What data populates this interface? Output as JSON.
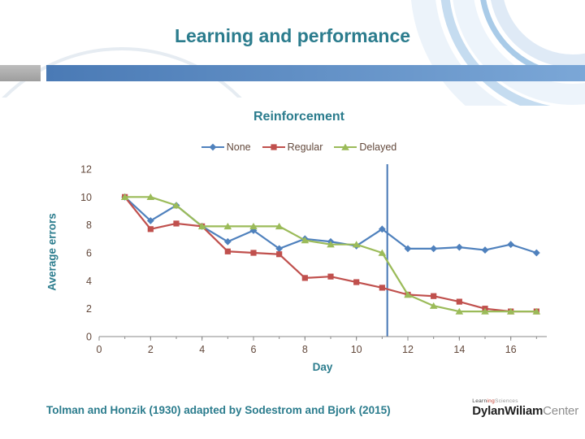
{
  "slide": {
    "title": "Learning and performance",
    "caption": "Tolman and Honzik (1930) adapted by Sodestrom and Bjork (2015)",
    "logo": {
      "learn": "Learn",
      "ing": "ing",
      "sciences": "Sciences",
      "dylan": "Dylan",
      "wiliam": "Wiliam",
      "center": "Center"
    }
  },
  "colors": {
    "accent_teal": "#2b7c8d",
    "chart_text_brown": "#63493c",
    "axis_line": "#8a8a8a",
    "header_bar_blue_start": "#4a7ab5",
    "header_bar_blue_end": "#7ba7d7",
    "header_bar_gray": "#ababab",
    "vline_blue": "#4576b5"
  },
  "chart_data": {
    "type": "line",
    "title": "Reinforcement",
    "xlabel": "Day",
    "ylabel": "Average errors",
    "xlim": [
      0,
      17.4
    ],
    "ylim": [
      0,
      12
    ],
    "xticks": [
      0,
      2,
      4,
      6,
      8,
      10,
      12,
      14,
      16
    ],
    "yticks": [
      0,
      2,
      4,
      6,
      8,
      10,
      12
    ],
    "grid": false,
    "legend_position": "top",
    "annotation_vline_x": 11.2,
    "x": [
      1,
      2,
      3,
      4,
      5,
      6,
      7,
      8,
      9,
      10,
      11,
      12,
      13,
      14,
      15,
      16,
      17
    ],
    "series": [
      {
        "name": "None",
        "color": "#4F81BD",
        "marker": "diamond",
        "values": [
          10,
          8.3,
          9.4,
          7.9,
          6.8,
          7.6,
          6.3,
          7.0,
          6.8,
          6.5,
          7.7,
          6.3,
          6.3,
          6.4,
          6.2,
          6.6,
          6.0
        ]
      },
      {
        "name": "Regular",
        "color": "#C0504D",
        "marker": "square",
        "values": [
          10,
          7.7,
          8.1,
          7.9,
          6.1,
          6.0,
          5.9,
          4.2,
          4.3,
          3.9,
          3.5,
          3.0,
          2.9,
          2.5,
          2.0,
          1.8,
          1.8
        ]
      },
      {
        "name": "Delayed",
        "color": "#9BBB59",
        "marker": "triangle",
        "values": [
          10,
          10,
          9.4,
          7.9,
          7.9,
          7.9,
          7.9,
          6.9,
          6.6,
          6.6,
          6.0,
          3.0,
          2.2,
          1.8,
          1.8,
          1.8,
          1.8
        ]
      }
    ]
  }
}
